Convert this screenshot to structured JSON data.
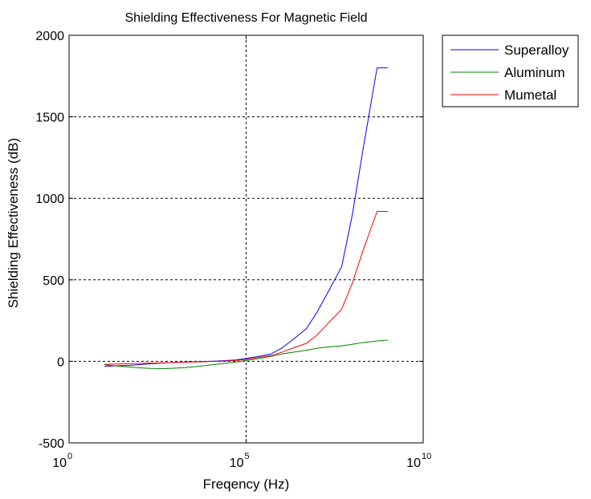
{
  "chart_data": {
    "type": "line",
    "title": "Shielding Effectiveness For Magnetic Field",
    "xlabel": "Freqency (Hz)",
    "ylabel": "Shielding Effectiveness (dB)",
    "xscale": "log",
    "xlim": [
      1,
      10000000000
    ],
    "ylim": [
      -500,
      2000
    ],
    "x_ticks": [
      {
        "base": "10",
        "exp": "0"
      },
      {
        "base": "10",
        "exp": "5"
      },
      {
        "base": "10",
        "exp": "10"
      }
    ],
    "x_tick_values": [
      1,
      100000,
      10000000000
    ],
    "y_ticks": [
      "-500",
      "0",
      "500",
      "1000",
      "1500",
      "2000"
    ],
    "y_tick_values": [
      -500,
      0,
      500,
      1000,
      1500,
      2000
    ],
    "grid": true,
    "legend_position": "outside-top-right",
    "series": [
      {
        "name": "Superalloy",
        "color": "#0000ff",
        "x": [
          10,
          20,
          50,
          100,
          200,
          500,
          1000,
          2000,
          5000,
          10000,
          20000,
          50000,
          100000,
          200000,
          500000,
          1000000,
          2000000,
          5000000,
          10000000,
          20000000,
          50000000,
          100000000,
          200000000,
          500000000,
          1000000000
        ],
        "y": [
          -30,
          -28,
          -25,
          -20,
          -15,
          -10,
          -6,
          -4,
          -2,
          0,
          3,
          8,
          18,
          28,
          45,
          80,
          130,
          200,
          300,
          420,
          580,
          900,
          1300,
          1800,
          1800
        ]
      },
      {
        "name": "Aluminum",
        "color": "#008000",
        "x": [
          10,
          20,
          50,
          100,
          200,
          500,
          1000,
          2000,
          5000,
          10000,
          20000,
          50000,
          100000,
          200000,
          500000,
          1000000,
          2000000,
          5000000,
          10000000,
          20000000,
          50000000,
          100000000,
          200000000,
          500000000,
          1000000000
        ],
        "y": [
          -20,
          -28,
          -35,
          -40,
          -44,
          -45,
          -42,
          -38,
          -30,
          -22,
          -15,
          -5,
          5,
          15,
          30,
          45,
          55,
          68,
          80,
          88,
          95,
          105,
          115,
          125,
          130
        ]
      },
      {
        "name": "Mumetal",
        "color": "#ff0000",
        "x": [
          10,
          20,
          50,
          100,
          200,
          500,
          1000,
          2000,
          5000,
          10000,
          20000,
          50000,
          100000,
          200000,
          500000,
          1000000,
          2000000,
          5000000,
          10000000,
          20000000,
          50000000,
          100000000,
          200000000,
          500000000,
          1000000000
        ],
        "y": [
          -18,
          -17,
          -15,
          -13,
          -11,
          -9,
          -7,
          -5,
          -3,
          -1,
          1,
          5,
          12,
          22,
          35,
          55,
          80,
          110,
          160,
          230,
          320,
          480,
          680,
          920,
          920
        ]
      }
    ]
  }
}
